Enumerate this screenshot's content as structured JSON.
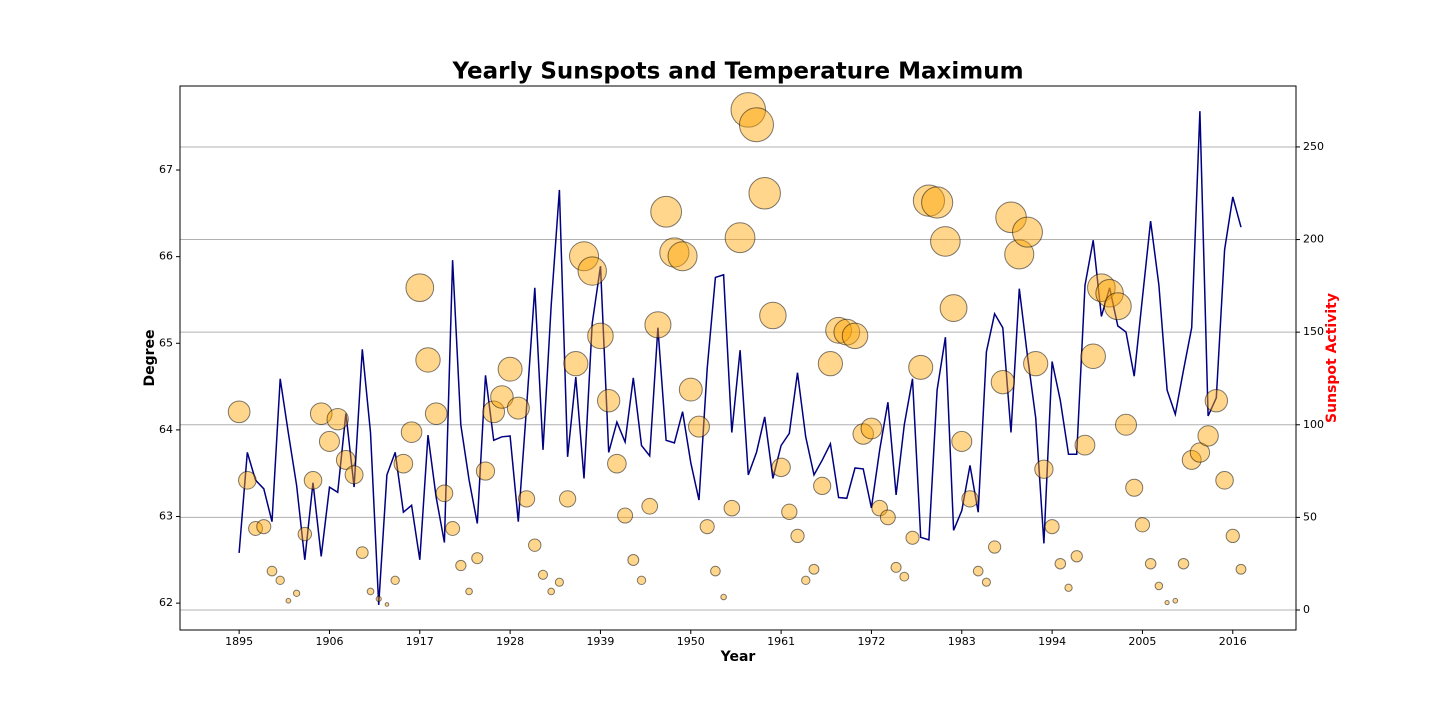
{
  "chart_data": {
    "type": "line",
    "title": "Yearly Sunspots and Temperature Maximum",
    "x_label": "Year",
    "y_label": "Degree",
    "y2_label": "Sunspot Activity",
    "y2_label_color": "#ff0000",
    "x": [
      1895,
      1896,
      1897,
      1898,
      1899,
      1900,
      1901,
      1902,
      1903,
      1904,
      1905,
      1906,
      1907,
      1908,
      1909,
      1910,
      1911,
      1912,
      1913,
      1914,
      1915,
      1916,
      1917,
      1918,
      1919,
      1920,
      1921,
      1922,
      1923,
      1924,
      1925,
      1926,
      1927,
      1928,
      1929,
      1930,
      1931,
      1932,
      1933,
      1934,
      1935,
      1936,
      1937,
      1938,
      1939,
      1940,
      1941,
      1942,
      1943,
      1944,
      1945,
      1946,
      1947,
      1948,
      1949,
      1950,
      1951,
      1952,
      1953,
      1954,
      1955,
      1956,
      1957,
      1958,
      1959,
      1960,
      1961,
      1962,
      1963,
      1964,
      1965,
      1966,
      1967,
      1968,
      1969,
      1970,
      1971,
      1972,
      1973,
      1974,
      1975,
      1976,
      1977,
      1978,
      1979,
      1980,
      1981,
      1982,
      1983,
      1984,
      1985,
      1986,
      1987,
      1988,
      1989,
      1990,
      1991,
      1992,
      1993,
      1994,
      1995,
      1996,
      1997,
      1998,
      1999,
      2000,
      2001,
      2002,
      2003,
      2004,
      2005,
      2006,
      2007,
      2008,
      2009,
      2010,
      2011,
      2012,
      2013,
      2014,
      2015,
      2016,
      2017
    ],
    "series": [
      {
        "type": "line",
        "axis": "y",
        "color": "#000080",
        "values": [
          62.58,
          63.74,
          63.42,
          63.32,
          62.94,
          64.59,
          63.96,
          63.36,
          62.5,
          63.39,
          62.54,
          63.34,
          63.28,
          64.19,
          63.34,
          64.93,
          63.97,
          61.98,
          63.48,
          63.74,
          63.05,
          63.13,
          62.5,
          63.94,
          63.22,
          62.7,
          65.96,
          64.06,
          63.42,
          62.92,
          64.63,
          63.88,
          63.92,
          63.93,
          62.94,
          64.25,
          65.64,
          63.77,
          65.44,
          66.77,
          63.69,
          64.61,
          63.44,
          65.23,
          65.89,
          63.74,
          64.09,
          63.86,
          64.6,
          63.82,
          63.7,
          65.18,
          63.88,
          63.85,
          64.21,
          63.62,
          63.19,
          64.71,
          65.76,
          65.79,
          63.97,
          64.92,
          63.48,
          63.74,
          64.15,
          63.44,
          63.82,
          63.96,
          64.66,
          63.92,
          63.48,
          63.65,
          63.84,
          63.22,
          63.21,
          63.56,
          63.55,
          63.1,
          63.77,
          64.32,
          63.25,
          64.06,
          64.59,
          62.76,
          62.73,
          64.46,
          65.07,
          62.84,
          63.07,
          63.59,
          63.05,
          64.9,
          65.34,
          65.18,
          63.97,
          65.63,
          64.85,
          64.14,
          62.69,
          64.79,
          64.34,
          63.72,
          63.72,
          65.67,
          66.19,
          65.31,
          65.64,
          65.2,
          65.13,
          64.62,
          65.52,
          66.41,
          65.67,
          64.46,
          64.18,
          64.69,
          65.18,
          67.68,
          64.16,
          64.37,
          66.08,
          66.69,
          66.34
        ]
      },
      {
        "type": "scatter",
        "axis": "y2",
        "color": "#ffa500",
        "values": [
          107,
          70,
          44,
          45,
          21,
          16,
          5,
          9,
          41,
          70,
          106,
          91,
          103,
          81,
          73,
          31,
          10,
          6,
          3,
          16,
          79,
          96,
          174,
          135,
          106,
          63,
          44,
          24,
          10,
          28,
          75,
          107,
          115,
          130,
          109,
          60,
          35,
          19,
          10,
          15,
          60,
          133,
          191,
          183,
          148,
          113,
          79,
          51,
          27,
          16,
          56,
          154,
          215,
          193,
          191,
          119,
          99,
          45,
          21,
          7,
          55,
          201,
          270,
          262,
          225,
          159,
          77,
          53,
          40,
          16,
          22,
          67,
          133,
          151,
          150,
          148,
          95,
          98,
          55,
          50,
          23,
          18,
          39,
          131,
          221,
          220,
          199,
          163,
          91,
          60,
          21,
          15,
          34,
          123,
          212,
          192,
          204,
          133,
          76,
          45,
          25,
          12,
          29,
          89,
          137,
          174,
          171,
          164,
          100,
          66,
          46,
          25,
          13,
          4,
          5,
          25,
          81,
          85,
          94,
          113,
          70,
          40,
          22
        ]
      }
    ],
    "xlim": [
      1887.8,
      2023.7
    ],
    "xticks": [
      1895,
      1906,
      1917,
      1928,
      1939,
      1950,
      1961,
      1972,
      1983,
      1994,
      2005,
      2016
    ],
    "ylim": [
      61.69,
      67.97
    ],
    "yticks": [
      62,
      63,
      64,
      65,
      66,
      67
    ],
    "y2lim": [
      -10.8,
      282.9
    ],
    "y2ticks": [
      0,
      50,
      100,
      150,
      200,
      250
    ],
    "grid": true,
    "grid_axis": "y2"
  }
}
